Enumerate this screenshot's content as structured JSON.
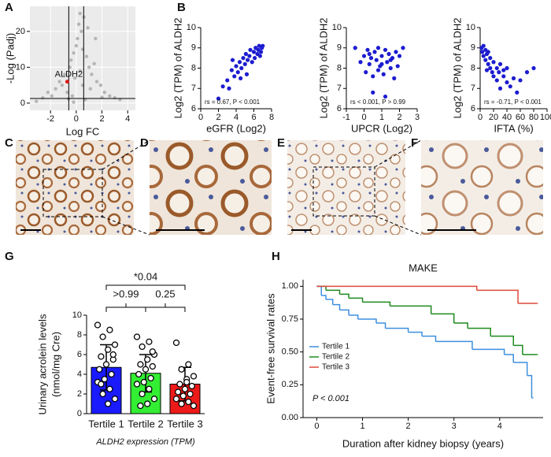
{
  "panel_labels": [
    "A",
    "B",
    "C",
    "D",
    "E",
    "F",
    "G",
    "H"
  ],
  "chart_data": [
    {
      "type": "volcano",
      "xlabel": "Log FC",
      "ylabel": "-Log (Padj)",
      "xlim": [
        -3.6,
        4.6
      ],
      "ylim": [
        -2,
        27
      ],
      "xticks": [
        -2,
        0,
        2,
        4
      ],
      "yticks": [
        0,
        10,
        20
      ],
      "vlines": [
        -0.58,
        0.58
      ],
      "hline": 1.3,
      "color": "#b5b5b5",
      "x": [
        -3.1,
        -2.6,
        -2.2,
        -1.9,
        -1.6,
        -1.3,
        -1.1,
        -0.9,
        -0.7,
        -0.5,
        -0.4,
        -0.3,
        -0.2,
        -0.1,
        0,
        0.1,
        0.2,
        0.3,
        0.4,
        0.5,
        0.6,
        0.8,
        1.0,
        1.2,
        1.4,
        1.6,
        1.9,
        2.2,
        2.6,
        3.0,
        3.4,
        0.3,
        0.5,
        -0.2,
        1.1,
        0.7,
        -0.6,
        2.0,
        0.9,
        1.5
      ],
      "y": [
        0.5,
        1.5,
        3,
        2,
        4,
        6,
        5,
        8,
        3,
        10,
        12,
        2,
        14,
        7,
        16,
        18,
        22,
        25,
        20,
        15,
        24,
        13,
        10,
        8,
        11,
        6,
        5,
        3,
        2,
        1.5,
        1,
        9,
        5,
        0.3,
        4,
        1,
        1.2,
        1.6,
        21,
        18
      ],
      "highlight": {
        "label": "ALDH2",
        "x": -0.7,
        "y": 6,
        "color": "#e0201b"
      }
    },
    {
      "type": "scatter",
      "xlabel": "eGFR (Log2)",
      "ylabel": "Log2 (TPM) of ALDH2",
      "xlim": [
        0,
        8
      ],
      "ylim": [
        6,
        10
      ],
      "xticks": [
        0,
        2,
        4,
        6,
        8
      ],
      "yticks": [
        6,
        7,
        8,
        9,
        10
      ],
      "color": "#1c1cd0",
      "annotation": "rs = 0.67, P < 0.001",
      "x": [
        2.0,
        2.5,
        3.0,
        3.2,
        3.5,
        3.8,
        4.0,
        4.2,
        4.4,
        4.6,
        4.8,
        5.0,
        5.1,
        5.3,
        5.5,
        5.6,
        5.8,
        6.0,
        6.1,
        6.2,
        6.4,
        6.5,
        6.6,
        6.7,
        6.8,
        6.9,
        7.0,
        4.5,
        5.2,
        3.6
      ],
      "y": [
        6.5,
        7.1,
        7.4,
        7.0,
        7.9,
        7.6,
        8.1,
        7.8,
        8.3,
        8.0,
        8.5,
        8.2,
        8.7,
        8.4,
        8.6,
        8.9,
        8.3,
        8.8,
        8.5,
        9.0,
        8.7,
        8.9,
        9.1,
        8.6,
        8.8,
        9.0,
        9.1,
        7.5,
        7.7,
        8.4
      ]
    },
    {
      "type": "scatter",
      "xlabel": "UPCR (Log2)",
      "ylabel": "Log2 (TPM) of ALDH2",
      "xlim": [
        -1,
        3
      ],
      "ylim": [
        6,
        10
      ],
      "xticks": [
        -1,
        0,
        1,
        2,
        3
      ],
      "yticks": [
        6,
        7,
        8,
        9,
        10
      ],
      "color": "#1c1cd0",
      "annotation": "rs < 0.001, P > 0.99",
      "x": [
        -0.5,
        -0.2,
        0,
        0.1,
        0.2,
        0.3,
        0.4,
        0.5,
        0.6,
        0.7,
        0.8,
        0.9,
        1.0,
        1.1,
        1.2,
        1.3,
        1.4,
        1.5,
        1.6,
        1.7,
        1.8,
        2.0,
        2.2,
        0.5,
        1.0,
        1.2,
        0.8,
        1.5,
        0.3,
        1.9
      ],
      "y": [
        9.0,
        8.3,
        8.6,
        7.8,
        8.9,
        8.2,
        8.5,
        7.6,
        8.8,
        8.4,
        9.0,
        8.1,
        8.6,
        7.7,
        8.9,
        8.3,
        8.7,
        8.0,
        8.5,
        7.5,
        8.8,
        8.6,
        9.0,
        6.8,
        8.2,
        6.6,
        7.9,
        8.4,
        8.7,
        8.1
      ]
    },
    {
      "type": "scatter",
      "xlabel": "IFTA (%)",
      "ylabel": "Log2 (TPM) of ALDH2",
      "xlim": [
        0,
        100
      ],
      "ylim": [
        6,
        10
      ],
      "xticks": [
        0,
        20,
        40,
        60,
        80,
        100
      ],
      "yticks": [
        6,
        7,
        8,
        9,
        10
      ],
      "color": "#1c1cd0",
      "annotation": "rs = -0.71, P < 0.001",
      "x": [
        2,
        3,
        5,
        5,
        8,
        8,
        10,
        12,
        12,
        15,
        15,
        18,
        20,
        20,
        25,
        25,
        28,
        30,
        30,
        35,
        35,
        40,
        40,
        45,
        50,
        55,
        60,
        70,
        80,
        10
      ],
      "y": [
        9.0,
        8.8,
        9.1,
        8.6,
        8.9,
        8.4,
        8.7,
        8.2,
        8.8,
        8.0,
        8.5,
        7.8,
        8.3,
        7.6,
        8.0,
        7.4,
        7.8,
        8.2,
        7.0,
        7.6,
        7.9,
        7.3,
        8.0,
        7.1,
        7.5,
        6.8,
        7.4,
        7.8,
        8.0,
        7.9
      ]
    },
    {
      "type": "bar",
      "ylabel": [
        "Urinary acrolein levels",
        "(nmol/mg Cre)"
      ],
      "xlabel": "ALDH2 expression (TPM)",
      "categories": [
        "Tertile 1",
        "Tertile 2",
        "Tertile 3"
      ],
      "values": [
        4.7,
        4.1,
        3.0
      ],
      "errors": [
        2.3,
        1.9,
        1.7
      ],
      "colors": [
        "#1a1aff",
        "#33ee33",
        "#ee1a1a"
      ],
      "ylim": [
        0,
        10
      ],
      "yticks": [
        0,
        2,
        4,
        6,
        8,
        10
      ],
      "points": [
        [
          9,
          8.5,
          7.8,
          7,
          6.5,
          5.8,
          5.5,
          5,
          4.5,
          4,
          3.5,
          3.2,
          2.5,
          2,
          1.5,
          1,
          3,
          6
        ],
        [
          7.8,
          7.3,
          6.8,
          6,
          5.5,
          5,
          4.8,
          4.5,
          4,
          3.6,
          3.2,
          3,
          2.5,
          2,
          1.5,
          1,
          0.8,
          6.3
        ],
        [
          7.2,
          5,
          4.5,
          3.8,
          3.5,
          3,
          2.8,
          2.5,
          2.2,
          2,
          1.8,
          1.5,
          1.2,
          1,
          0.8,
          3.2
        ]
      ],
      "comparisons": [
        {
          "between": [
            "Tertile 1",
            "Tertile 2"
          ],
          "label": ">0.99"
        },
        {
          "between": [
            "Tertile 2",
            "Tertile 3"
          ],
          "label": "0.25"
        },
        {
          "between": [
            "Tertile 1",
            "Tertile 3"
          ],
          "label": "*0.04"
        }
      ]
    },
    {
      "type": "survival",
      "title": "MAKE",
      "xlabel": "Duration after kidney biopsy (years)",
      "ylabel": "Event-free survival rates",
      "xlim": [
        -0.3,
        4.95
      ],
      "ylim": [
        0,
        1.05
      ],
      "xticks": [
        0,
        1,
        2,
        3,
        4
      ],
      "yticks": [
        {
          "value": 0,
          "label": "0.00"
        },
        {
          "value": 0.25,
          "label": "0.25"
        },
        {
          "value": 0.5,
          "label": "0.50"
        },
        {
          "value": 0.75,
          "label": "0.75"
        },
        {
          "value": 1,
          "label": "1.00"
        }
      ],
      "annotation": "P < 0.001",
      "series": [
        {
          "name": "Tertile 1",
          "color": "#3d8fe0",
          "x": [
            0,
            0.1,
            0.2,
            0.35,
            0.5,
            0.7,
            0.9,
            1.3,
            1.5,
            2.0,
            2.3,
            2.6,
            3.4,
            4.1,
            4.3,
            4.6,
            4.7
          ],
          "values": [
            1,
            0.93,
            0.9,
            0.86,
            0.82,
            0.78,
            0.75,
            0.72,
            0.68,
            0.65,
            0.62,
            0.58,
            0.52,
            0.48,
            0.42,
            0.32,
            0.15
          ]
        },
        {
          "name": "Tertile 2",
          "color": "#1e8a1e",
          "x": [
            0,
            0.2,
            0.5,
            0.7,
            1.0,
            1.6,
            2.5,
            3.0,
            3.3,
            3.8,
            4.3,
            4.5,
            4.8
          ],
          "values": [
            1,
            0.97,
            0.94,
            0.91,
            0.88,
            0.85,
            0.79,
            0.72,
            0.68,
            0.62,
            0.55,
            0.48,
            0.48
          ]
        },
        {
          "name": "Tertile 3",
          "color": "#e0483a",
          "x": [
            0,
            3.5,
            4.4,
            4.8
          ],
          "values": [
            1,
            0.97,
            0.87,
            0.87
          ]
        }
      ]
    }
  ]
}
